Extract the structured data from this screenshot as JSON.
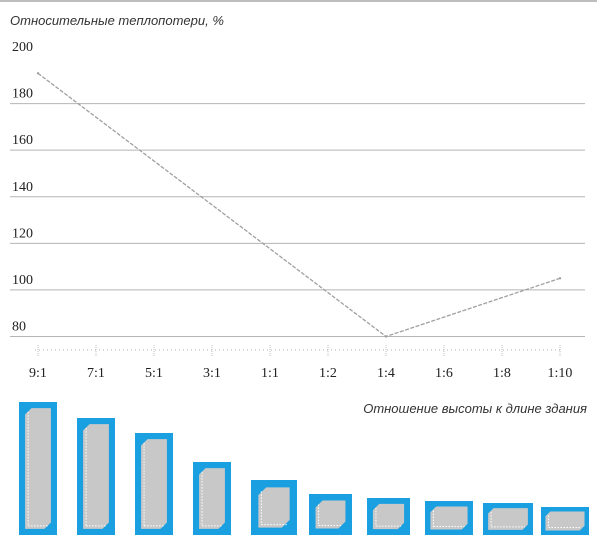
{
  "chart_data": {
    "type": "line",
    "title": "Относительные теплопотери, %",
    "xlabel": "Отношение высоты к длине здания",
    "ylabel": "",
    "categories": [
      "9:1",
      "7:1",
      "5:1",
      "3:1",
      "1:1",
      "1:2",
      "1:4",
      "1:6",
      "1:8",
      "1:10"
    ],
    "y_ticks": [
      80,
      100,
      120,
      140,
      160,
      180,
      200
    ],
    "ylim": [
      75,
      200
    ],
    "grid": true,
    "series": [
      {
        "points": [
          {
            "x": "9:1",
            "y": 193
          },
          {
            "x": "1:4",
            "y": 80
          },
          {
            "x": "1:10",
            "y": 105
          }
        ]
      }
    ],
    "building_icons": {
      "count": 10,
      "fill_color": "#1aa0e0",
      "shape_color": "#c8c8c8"
    },
    "colors": {
      "line": "#a0a0a0",
      "grid": "#b5b5b5",
      "text": "#222222"
    }
  }
}
